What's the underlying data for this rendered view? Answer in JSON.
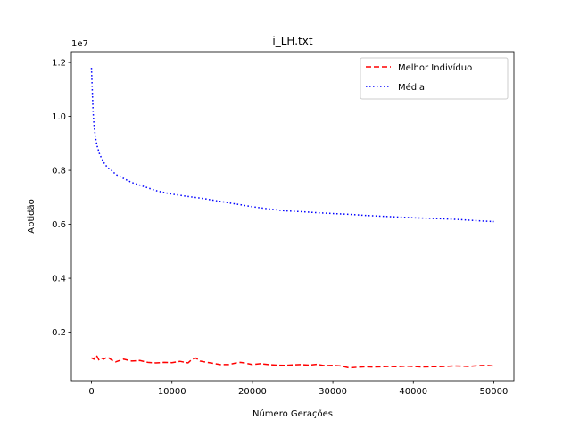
{
  "chart_data": {
    "type": "line",
    "title": "i_LH.txt",
    "xlabel": "Número Gerações",
    "ylabel": "Aptidão",
    "y_offset_label": "1e7",
    "xlim": [
      -2500,
      52500
    ],
    "ylim": [
      0.02,
      1.24
    ],
    "x_ticks": [
      0,
      10000,
      20000,
      30000,
      40000,
      50000
    ],
    "x_tick_labels": [
      "0",
      "10000",
      "20000",
      "30000",
      "40000",
      "50000"
    ],
    "y_ticks": [
      0.2,
      0.4,
      0.6,
      0.8,
      1.0,
      1.2
    ],
    "y_tick_labels": [
      "0.2",
      "0.4",
      "0.6",
      "0.8",
      "1.0",
      "1.2"
    ],
    "grid": false,
    "legend_position": "top-right",
    "series": [
      {
        "name": "Melhor Indivíduo",
        "color": "#ff0000",
        "style": "dashed",
        "x": [
          0,
          300,
          600,
          900,
          1200,
          1500,
          2000,
          2500,
          3000,
          3500,
          4000,
          5000,
          6000,
          7000,
          8000,
          9000,
          10000,
          11000,
          12000,
          12500,
          13000,
          13500,
          14000,
          15000,
          16000,
          17000,
          18000,
          18500,
          19000,
          20000,
          21000,
          22000,
          23000,
          24000,
          25000,
          26000,
          27000,
          28000,
          29000,
          30000,
          31000,
          32000,
          33000,
          34000,
          35000,
          36000,
          37000,
          38000,
          39000,
          40000,
          41000,
          42000,
          43000,
          44000,
          45000,
          46000,
          47000,
          48000,
          49000,
          50000
        ],
        "values": [
          0.105,
          0.1,
          0.115,
          0.098,
          0.105,
          0.1,
          0.108,
          0.097,
          0.09,
          0.095,
          0.1,
          0.093,
          0.095,
          0.088,
          0.086,
          0.088,
          0.087,
          0.092,
          0.086,
          0.1,
          0.104,
          0.093,
          0.09,
          0.085,
          0.08,
          0.08,
          0.086,
          0.088,
          0.086,
          0.08,
          0.083,
          0.08,
          0.078,
          0.077,
          0.079,
          0.08,
          0.078,
          0.081,
          0.076,
          0.077,
          0.075,
          0.068,
          0.07,
          0.072,
          0.071,
          0.072,
          0.073,
          0.072,
          0.074,
          0.073,
          0.071,
          0.072,
          0.072,
          0.073,
          0.075,
          0.074,
          0.073,
          0.076,
          0.077,
          0.075
        ]
      },
      {
        "name": "Média",
        "color": "#0000ff",
        "style": "dotted",
        "x": [
          0,
          100,
          200,
          300,
          500,
          700,
          1000,
          1500,
          2000,
          2500,
          3000,
          4000,
          5000,
          6000,
          7000,
          8000,
          9000,
          10000,
          12000,
          14000,
          16000,
          18000,
          20000,
          22000,
          24000,
          26000,
          28000,
          30000,
          32000,
          34000,
          36000,
          38000,
          40000,
          42000,
          44000,
          46000,
          48000,
          50000
        ],
        "values": [
          1.18,
          1.1,
          1.02,
          0.97,
          0.92,
          0.89,
          0.86,
          0.83,
          0.81,
          0.8,
          0.785,
          0.77,
          0.755,
          0.745,
          0.735,
          0.725,
          0.718,
          0.712,
          0.703,
          0.695,
          0.685,
          0.675,
          0.665,
          0.657,
          0.65,
          0.647,
          0.643,
          0.64,
          0.637,
          0.633,
          0.63,
          0.627,
          0.624,
          0.622,
          0.62,
          0.617,
          0.613,
          0.61
        ]
      }
    ]
  }
}
